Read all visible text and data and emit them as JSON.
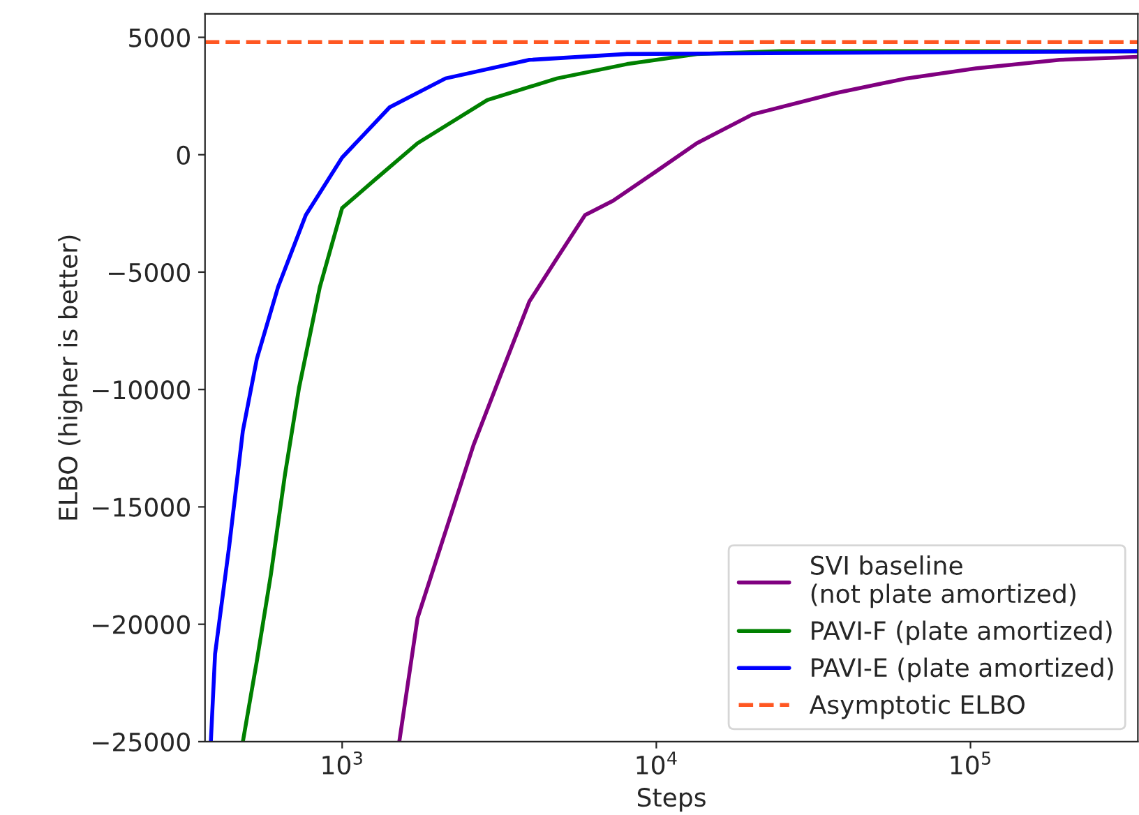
{
  "chart_data": {
    "type": "line",
    "xlabel": "Steps",
    "ylabel": "ELBO (higher is better)",
    "log": "x",
    "xlim": [
      366,
      341000
    ],
    "ylim": [
      -25000,
      6000
    ],
    "xticks": [
      {
        "value": 1000,
        "label": "10$^{3}$"
      },
      {
        "value": 10000,
        "label": "10$^{4}$"
      },
      {
        "value": 100000,
        "label": "10$^{5}$"
      }
    ],
    "yticks": [
      {
        "value": -25000,
        "label": "−25000"
      },
      {
        "value": -20000,
        "label": "−20000"
      },
      {
        "value": -15000,
        "label": "−15000"
      },
      {
        "value": -10000,
        "label": "−10000"
      },
      {
        "value": -5000,
        "label": "−5000"
      },
      0,
      5000
    ],
    "grid": false,
    "legend": "bottom right",
    "line_style": "solid",
    "marker": "none",
    "series": [
      {
        "name": "SVI baseline\n(not plate amortized)",
        "color": "#800080",
        "x": [
          1520,
          1738,
          2133,
          2617,
          3211,
          3944,
          4830,
          5930,
          7280,
          9910,
          13460,
          20260,
          37400,
          62500,
          104000,
          192000,
          341000
        ],
        "values": [
          -25000,
          -19730,
          -16050,
          -12380,
          -9310,
          -6250,
          -4410,
          -2570,
          -1960,
          -740,
          490,
          1720,
          2630,
          3250,
          3680,
          4040,
          4170
        ]
      },
      {
        "name": "PAVI-F (plate amortized)",
        "color": "#008000",
        "x": [
          483,
          535,
          593,
          658,
          729,
          849,
          1000,
          1278,
          1738,
          2897,
          4830,
          8065,
          13460,
          24880,
          341000
        ],
        "values": [
          -25000,
          -21570,
          -17890,
          -13600,
          -9930,
          -5640,
          -2270,
          -1040,
          490,
          2330,
          3250,
          3860,
          4290,
          4410,
          4410
        ]
      },
      {
        "name": "PAVI-E (plate amortized)",
        "color": "#0000ff",
        "x": [
          382,
          394,
          437,
          483,
          535,
          625,
          766,
          1000,
          1416,
          2133,
          3944,
          8065,
          341000
        ],
        "values": [
          -25000,
          -21260,
          -16670,
          -11760,
          -8700,
          -5640,
          -2570,
          -120,
          2020,
          3250,
          4040,
          4290,
          4410
        ]
      }
    ],
    "ref_lines": [
      {
        "axis": "y",
        "value": 4800,
        "label": "Asymptotic ELBO",
        "color": "#ff5722",
        "line_style": "dashed"
      }
    ]
  }
}
